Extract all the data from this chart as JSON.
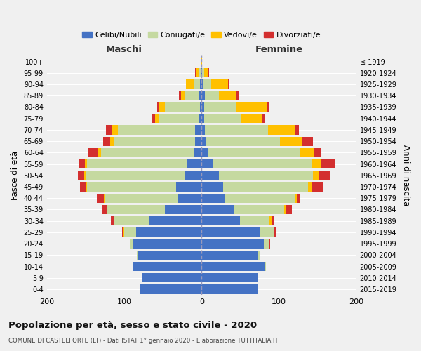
{
  "age_groups": [
    "100+",
    "95-99",
    "90-94",
    "85-89",
    "80-84",
    "75-79",
    "70-74",
    "65-69",
    "60-64",
    "55-59",
    "50-54",
    "45-49",
    "40-44",
    "35-39",
    "30-34",
    "25-29",
    "20-24",
    "15-19",
    "10-14",
    "5-9",
    "0-4"
  ],
  "birth_years": [
    "≤ 1919",
    "1920-1924",
    "1925-1929",
    "1930-1934",
    "1935-1939",
    "1940-1944",
    "1945-1949",
    "1950-1954",
    "1955-1959",
    "1960-1964",
    "1965-1969",
    "1970-1974",
    "1975-1979",
    "1980-1984",
    "1985-1989",
    "1990-1994",
    "1995-1999",
    "2000-2004",
    "2005-2009",
    "2010-2014",
    "2015-2019"
  ],
  "male": {
    "celibi": [
      0,
      1,
      2,
      4,
      2,
      3,
      8,
      8,
      10,
      18,
      22,
      33,
      30,
      47,
      68,
      85,
      88,
      82,
      89,
      77,
      80
    ],
    "coniugati": [
      0,
      2,
      8,
      18,
      45,
      52,
      100,
      105,
      120,
      130,
      128,
      115,
      95,
      75,
      45,
      15,
      5,
      2,
      0,
      0,
      0
    ],
    "vedovi": [
      0,
      4,
      10,
      5,
      8,
      5,
      8,
      5,
      4,
      3,
      2,
      2,
      1,
      1,
      1,
      1,
      0,
      0,
      0,
      0,
      0
    ],
    "divorziati": [
      0,
      1,
      0,
      2,
      2,
      5,
      8,
      9,
      12,
      8,
      8,
      7,
      9,
      5,
      3,
      2,
      0,
      0,
      0,
      0,
      0
    ]
  },
  "female": {
    "nubili": [
      0,
      1,
      2,
      4,
      3,
      3,
      4,
      6,
      8,
      14,
      22,
      28,
      30,
      42,
      50,
      75,
      80,
      72,
      82,
      72,
      72
    ],
    "coniugate": [
      0,
      2,
      10,
      18,
      42,
      48,
      82,
      95,
      120,
      128,
      122,
      110,
      90,
      65,
      38,
      18,
      8,
      3,
      1,
      0,
      0
    ],
    "vedove": [
      1,
      5,
      22,
      22,
      40,
      28,
      35,
      28,
      18,
      12,
      8,
      5,
      3,
      2,
      2,
      1,
      0,
      0,
      0,
      0,
      0
    ],
    "divorziate": [
      0,
      2,
      1,
      5,
      2,
      2,
      5,
      15,
      8,
      18,
      14,
      14,
      5,
      8,
      4,
      2,
      1,
      0,
      0,
      0,
      0
    ]
  },
  "colors": {
    "celibi_nubili": "#4472c4",
    "coniugati": "#c5d9a0",
    "vedovi": "#ffc000",
    "divorziati": "#d32f2f"
  },
  "title": "Popolazione per età, sesso e stato civile - 2020",
  "subtitle": "COMUNE DI CASTELFORTE (LT) - Dati ISTAT 1° gennaio 2020 - Elaborazione TUTTITALIA.IT",
  "xlabel_left": "Maschi",
  "xlabel_right": "Femmine",
  "ylabel_left": "Fasce di età",
  "ylabel_right": "Anni di nascita",
  "xlim": 200,
  "background_color": "#f0f0f0",
  "legend_labels": [
    "Celibi/Nubili",
    "Coniugati/e",
    "Vedovi/e",
    "Divorziati/e"
  ]
}
